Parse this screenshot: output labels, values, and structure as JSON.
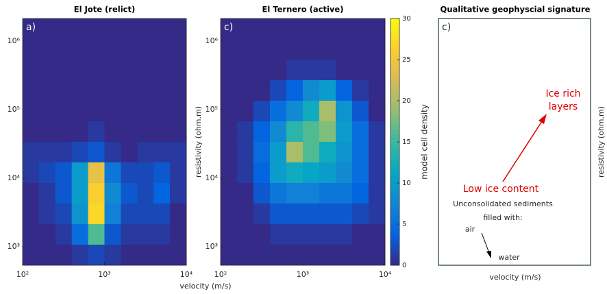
{
  "chart_data": [
    {
      "type": "heatmap",
      "title": "El Jote (relict)",
      "panel_label": "a)",
      "xlim": [
        100,
        10000
      ],
      "ylim": [
        537,
        2138000
      ],
      "log_x": true,
      "log_y": true,
      "xticks": [
        {
          "value": 100,
          "label": "10²"
        },
        {
          "value": 1000,
          "label": "10³"
        },
        {
          "value": 10000,
          "label": "10⁴"
        }
      ],
      "yticks": [
        {
          "value": 1000,
          "label": "10³"
        },
        {
          "value": 10000,
          "label": "10⁴"
        },
        {
          "value": 100000,
          "label": "10⁵"
        },
        {
          "value": 1000000,
          "label": "10⁶"
        }
      ],
      "xbins": [
        100,
        158,
        251,
        398,
        631,
        1000,
        1585,
        2512,
        3981,
        6310,
        10000
      ],
      "ybins": [
        2138000,
        1072000,
        537000,
        269000,
        135000,
        67600,
        33900,
        17000,
        8510,
        4270,
        2140,
        1070,
        537
      ],
      "density": [
        [
          0,
          0,
          0,
          0,
          0,
          0,
          0,
          0,
          0,
          0
        ],
        [
          0,
          0,
          0,
          0,
          0,
          0,
          0,
          0,
          0,
          0
        ],
        [
          0,
          0,
          0,
          0,
          0,
          0,
          0,
          0,
          0,
          0
        ],
        [
          0,
          0,
          0,
          0,
          0,
          0,
          0,
          0,
          0,
          0
        ],
        [
          0,
          0,
          0,
          0,
          0,
          0,
          0,
          0,
          0,
          0
        ],
        [
          0,
          0,
          0,
          0,
          1,
          0,
          0,
          0,
          0,
          0
        ],
        [
          1,
          1,
          1,
          2,
          3,
          1,
          0,
          1,
          1,
          1
        ],
        [
          1,
          2,
          3,
          10,
          24,
          6,
          2,
          2,
          3,
          1
        ],
        [
          0,
          1,
          3,
          10,
          26,
          8,
          3,
          2,
          4,
          1
        ],
        [
          0,
          1,
          2,
          9,
          27,
          7,
          2,
          2,
          2,
          0
        ],
        [
          0,
          0,
          1,
          5,
          16,
          3,
          1,
          1,
          1,
          0
        ],
        [
          0,
          0,
          0,
          1,
          2,
          1,
          0,
          0,
          0,
          0
        ]
      ]
    },
    {
      "type": "heatmap",
      "title": "El Ternero (active)",
      "panel_label": "c)",
      "y_label": "resistivity (ohm.m)",
      "xlim": [
        100,
        10000
      ],
      "ylim": [
        537,
        2138000
      ],
      "log_x": true,
      "log_y": true,
      "xticks": [
        {
          "value": 100,
          "label": "10²"
        },
        {
          "value": 1000,
          "label": "10³"
        },
        {
          "value": 10000,
          "label": "10⁴"
        }
      ],
      "yticks": [
        {
          "value": 1000,
          "label": "10³"
        },
        {
          "value": 10000,
          "label": "10⁴"
        },
        {
          "value": 100000,
          "label": "10⁵"
        },
        {
          "value": 1000000,
          "label": "10⁶"
        }
      ],
      "xbins": [
        100,
        158,
        251,
        398,
        631,
        1000,
        1585,
        2512,
        3981,
        6310,
        10000
      ],
      "ybins": [
        2138000,
        1072000,
        537000,
        269000,
        135000,
        67600,
        33900,
        17000,
        8510,
        4270,
        2140,
        1070,
        537
      ],
      "density": [
        [
          0,
          0,
          0,
          0,
          0,
          0,
          0,
          0,
          0,
          0
        ],
        [
          0,
          0,
          0,
          0,
          0,
          0,
          0,
          0,
          0,
          0
        ],
        [
          0,
          0,
          0,
          0,
          1,
          1,
          1,
          0,
          0,
          0
        ],
        [
          0,
          0,
          0,
          2,
          4,
          8,
          10,
          4,
          1,
          0
        ],
        [
          0,
          0,
          2,
          5,
          8,
          12,
          20,
          9,
          3,
          0
        ],
        [
          0,
          1,
          4,
          8,
          14,
          16,
          18,
          10,
          5,
          1
        ],
        [
          0,
          1,
          5,
          10,
          20,
          16,
          12,
          9,
          5,
          1
        ],
        [
          0,
          1,
          4,
          10,
          12,
          11,
          10,
          8,
          5,
          1
        ],
        [
          0,
          0,
          3,
          6,
          7,
          7,
          6,
          6,
          4,
          1
        ],
        [
          0,
          0,
          1,
          3,
          3,
          3,
          3,
          3,
          2,
          1
        ],
        [
          0,
          0,
          0,
          1,
          1,
          1,
          1,
          1,
          0,
          0
        ],
        [
          0,
          0,
          0,
          0,
          0,
          0,
          0,
          0,
          0,
          0
        ]
      ],
      "clim": [
        0,
        30
      ],
      "cticks": [
        0,
        5,
        10,
        15,
        20,
        25,
        30
      ],
      "colorbar_label": "model cell density",
      "colormap": [
        "#352a87",
        "#0363e1",
        "#1485d4",
        "#06a7c6",
        "#38b99e",
        "#92bf73",
        "#d9ba56",
        "#fcce2e",
        "#f9fb0e"
      ]
    }
  ],
  "x_label": "velocity (m/s)",
  "schematic": {
    "title": "Qualitative geophyscial signature",
    "panel_label": "c)",
    "ice_rich": [
      "Ice rich",
      "layers"
    ],
    "low_ice": "Low ice content",
    "sediments": "Unconsolidated sediments",
    "filled_with": "filled with:",
    "air": "air",
    "water": "water",
    "x_label": "velocity (m/s)",
    "y_label": "resistivity (ohm.m)"
  }
}
